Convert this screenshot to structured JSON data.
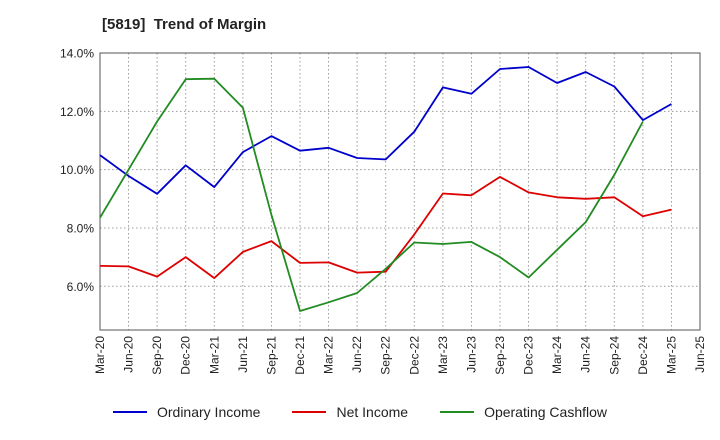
{
  "chart_data": {
    "type": "line",
    "title": "[5819]  Trend of Margin",
    "x": [
      "Mar-20",
      "Jun-20",
      "Sep-20",
      "Dec-20",
      "Mar-21",
      "Jun-21",
      "Sep-21",
      "Dec-21",
      "Mar-22",
      "Jun-22",
      "Sep-22",
      "Dec-22",
      "Mar-23",
      "Jun-23",
      "Sep-23",
      "Dec-23",
      "Mar-24",
      "Jun-24",
      "Sep-24",
      "Dec-24",
      "Mar-25",
      "Jun-25"
    ],
    "yticks": [
      "6.0%",
      "8.0%",
      "10.0%",
      "12.0%",
      "14.0%"
    ],
    "ylim": [
      4.5,
      14.0
    ],
    "grid": true,
    "legend_position": "bottom",
    "series": [
      {
        "name": "Ordinary Income",
        "color": "#0000cc",
        "values": [
          10.5,
          9.78,
          9.17,
          10.15,
          9.4,
          10.6,
          11.15,
          10.65,
          10.75,
          10.4,
          10.35,
          11.3,
          12.82,
          12.6,
          13.45,
          13.52,
          12.97,
          13.35,
          12.85,
          11.7,
          12.25,
          null
        ]
      },
      {
        "name": "Net Income",
        "color": "#dd0000",
        "values": [
          6.7,
          6.68,
          6.33,
          7.0,
          6.28,
          7.18,
          7.55,
          6.8,
          6.82,
          6.47,
          6.5,
          7.78,
          9.18,
          9.12,
          9.75,
          9.22,
          9.05,
          9.0,
          9.05,
          8.4,
          8.63,
          null
        ]
      },
      {
        "name": "Operating Cashflow",
        "color": "#228b22",
        "values": [
          8.35,
          10.0,
          11.65,
          13.1,
          13.12,
          12.12,
          8.45,
          5.15,
          5.45,
          5.77,
          6.6,
          7.5,
          7.45,
          7.52,
          7.0,
          6.3,
          7.25,
          8.2,
          9.82,
          11.65,
          null,
          null
        ]
      }
    ]
  }
}
